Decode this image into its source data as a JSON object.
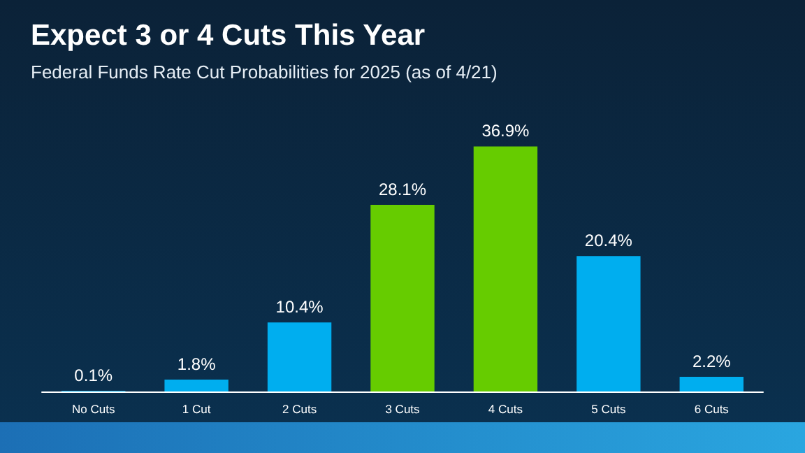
{
  "chart_data": {
    "type": "bar",
    "title": "Expect 3 or 4 Cuts This Year",
    "subtitle": "Federal Funds Rate Cut Probabilities for 2025 (as of 4/21)",
    "categories": [
      "No Cuts",
      "1 Cut",
      "2 Cuts",
      "3 Cuts",
      "4 Cuts",
      "5 Cuts",
      "6 Cuts"
    ],
    "values": [
      0.1,
      1.8,
      10.4,
      28.1,
      36.9,
      20.4,
      2.2
    ],
    "colors": [
      "#00aeef",
      "#00aeef",
      "#00aeef",
      "#66cc00",
      "#66cc00",
      "#00aeef",
      "#00aeef"
    ],
    "value_labels": [
      "0.1%",
      "1.8%",
      "10.4%",
      "28.1%",
      "36.9%",
      "20.4%",
      "2.2%"
    ]
  }
}
